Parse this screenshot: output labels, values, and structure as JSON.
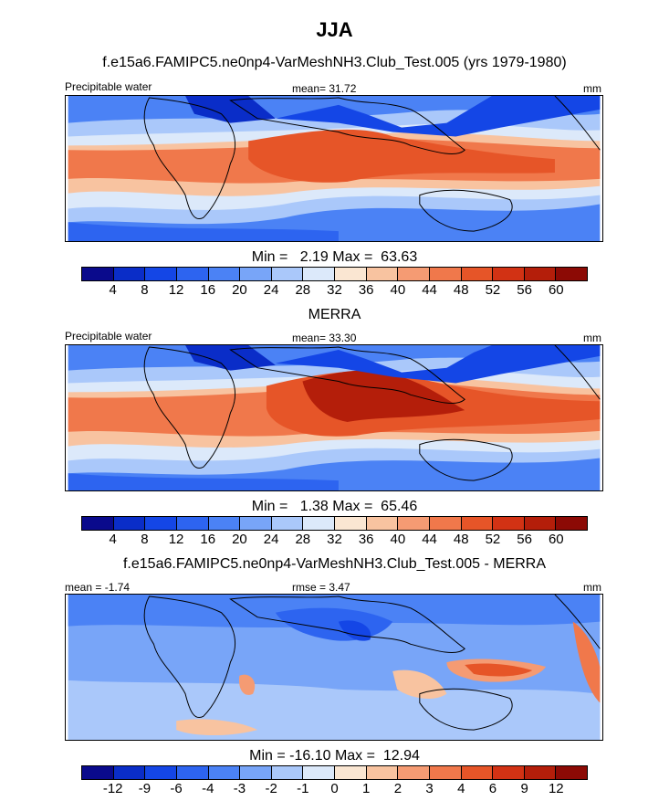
{
  "title": "JJA",
  "colors_main": [
    "#0a0a8c",
    "#0a2dc8",
    "#1446e6",
    "#2d64f0",
    "#4b82f5",
    "#78a5f8",
    "#aac8fa",
    "#dce9fa",
    "#fae6d2",
    "#f8c3a0",
    "#f59b73",
    "#f0784b",
    "#e65528",
    "#d23214",
    "#b41e0a",
    "#8c0a05"
  ],
  "colors_diff": [
    "#0a0a8c",
    "#0a2dc8",
    "#1446e6",
    "#2d64f0",
    "#4b82f5",
    "#78a5f8",
    "#aac8fa",
    "#dce9fa",
    "#fae6d2",
    "#f8c3a0",
    "#f59b73",
    "#f0784b",
    "#e65528",
    "#d23214",
    "#b41e0a",
    "#8c0a05"
  ],
  "chart_data": [
    {
      "type": "heatmap",
      "title": "f.e15a6.FAMIPC5.ne0np4-VarMeshNH3.Club_Test.005 (yrs 1979-1980)",
      "left_label": "Precipitable water",
      "center_label": "mean=  31.72",
      "right_label": "mm",
      "min_max": "Min =   2.19 Max =  63.63",
      "colorbar_levels": [
        "4",
        "8",
        "12",
        "16",
        "20",
        "24",
        "28",
        "32",
        "36",
        "40",
        "44",
        "48",
        "52",
        "56",
        "60"
      ],
      "mean": 31.72,
      "min": 2.19,
      "max": 63.63
    },
    {
      "type": "heatmap",
      "title": "MERRA",
      "left_label": "Precipitable water",
      "center_label": "mean=  33.30",
      "right_label": "mm",
      "min_max": "Min =   1.38 Max =  65.46",
      "colorbar_levels": [
        "4",
        "8",
        "12",
        "16",
        "20",
        "24",
        "28",
        "32",
        "36",
        "40",
        "44",
        "48",
        "52",
        "56",
        "60"
      ],
      "mean": 33.3,
      "min": 1.38,
      "max": 65.46
    },
    {
      "type": "heatmap",
      "title": "f.e15a6.FAMIPC5.ne0np4-VarMeshNH3.Club_Test.005 - MERRA",
      "left_label": "mean =  -1.74",
      "center_label": "rmse =   3.47",
      "right_label": "mm",
      "min_max": "Min = -16.10 Max =  12.94",
      "colorbar_levels": [
        "-12",
        "-9",
        "-6",
        "-4",
        "-3",
        "-2",
        "-1",
        "0",
        "1",
        "2",
        "3",
        "4",
        "6",
        "9",
        "12"
      ],
      "mean": -1.74,
      "rmse": 3.47,
      "min": -16.1,
      "max": 12.94
    }
  ]
}
